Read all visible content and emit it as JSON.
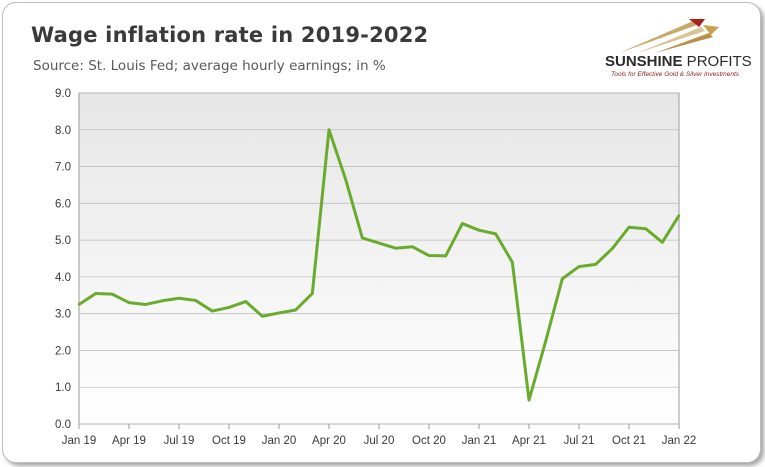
{
  "header": {
    "title": "Wage inflation rate in 2019-2022",
    "subtitle": "Source: St. Louis Fed; average hourly earnings; in %"
  },
  "logo": {
    "name_bold": "SUNSHINE",
    "name_light": " PROFITS",
    "tagline": "Tools for Effective Gold & Silver Investments"
  },
  "colors": {
    "line": "#6aab2e",
    "plot_gradient_top": "#e6e6e6",
    "plot_gradient_bottom": "#ffffff",
    "grid": "#bfbfbf"
  },
  "chart_data": {
    "type": "line",
    "title": "",
    "xlabel": "",
    "ylabel": "",
    "ylim": [
      0,
      9
    ],
    "y_ticks": [
      "0.0",
      "1.0",
      "2.0",
      "3.0",
      "4.0",
      "5.0",
      "6.0",
      "7.0",
      "8.0",
      "9.0"
    ],
    "x_ticks": [
      "Jan 19",
      "Apr 19",
      "Jul 19",
      "Oct 19",
      "Jan 20",
      "Apr 20",
      "Jul 20",
      "Oct 20",
      "Jan 21",
      "Apr 21",
      "Jul 21",
      "Oct 21",
      "Jan 22"
    ],
    "grid": true,
    "legend": "none",
    "x": [
      "Jan 19",
      "Feb 19",
      "Mar 19",
      "Apr 19",
      "May 19",
      "Jun 19",
      "Jul 19",
      "Aug 19",
      "Sep 19",
      "Oct 19",
      "Nov 19",
      "Dec 19",
      "Jan 20",
      "Feb 20",
      "Mar 20",
      "Apr 20",
      "May 20",
      "Jun 20",
      "Jul 20",
      "Aug 20",
      "Sep 20",
      "Oct 20",
      "Nov 20",
      "Dec 20",
      "Jan 21",
      "Feb 21",
      "Mar 21",
      "Apr 21",
      "May 21",
      "Jun 21",
      "Jul 21",
      "Aug 21",
      "Sep 21",
      "Oct 21",
      "Nov 21",
      "Dec 21",
      "Jan 22"
    ],
    "series": [
      {
        "values": [
          3.25,
          3.55,
          3.53,
          3.3,
          3.25,
          3.35,
          3.42,
          3.36,
          3.07,
          3.17,
          3.33,
          2.93,
          3.02,
          3.1,
          3.55,
          8.0,
          6.65,
          5.06,
          4.92,
          4.78,
          4.82,
          4.58,
          4.57,
          5.45,
          5.27,
          5.17,
          4.4,
          0.65,
          2.25,
          3.95,
          4.28,
          4.34,
          4.77,
          5.35,
          5.31,
          4.94,
          5.67
        ]
      }
    ]
  }
}
